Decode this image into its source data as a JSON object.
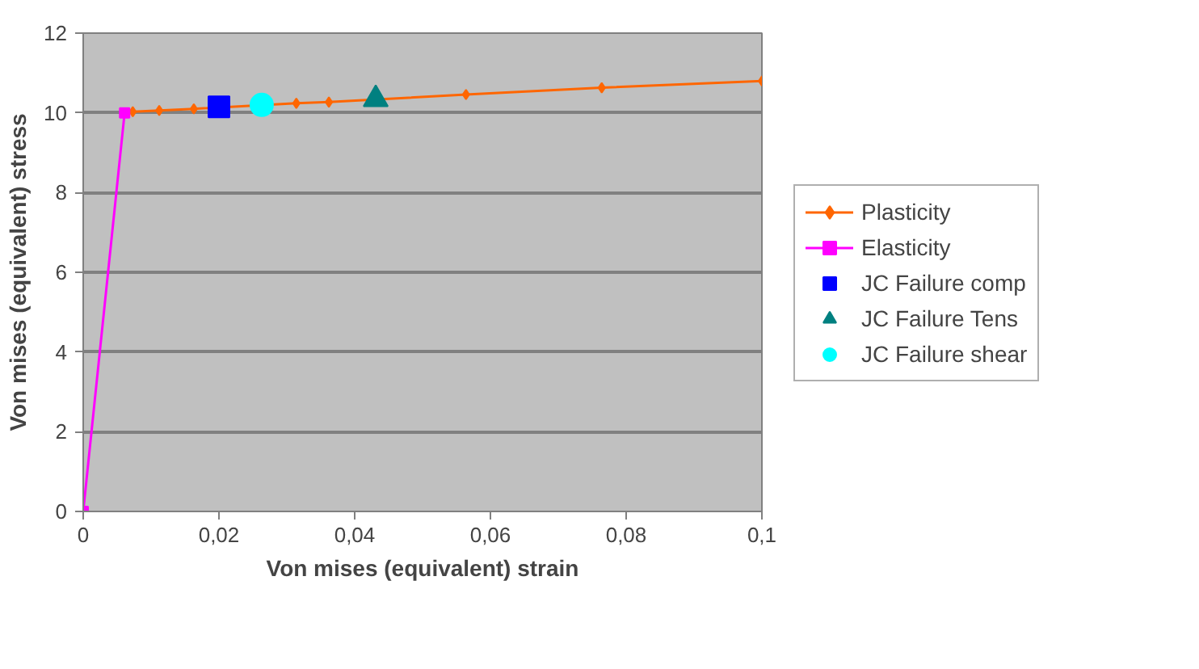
{
  "chart_data": {
    "type": "line",
    "xlabel": "Von mises (equivalent) strain",
    "ylabel": "Von mises (equivalent) stress",
    "xlim": [
      0,
      0.1
    ],
    "ylim": [
      0,
      12
    ],
    "xticks": [
      0,
      {
        "value": 0.02,
        "label": "0,02"
      },
      {
        "value": 0.04,
        "label": "0,04"
      },
      {
        "value": 0.06,
        "label": "0,06"
      },
      {
        "value": 0.08,
        "label": "0,08"
      },
      {
        "value": 0.1,
        "label": "0,1"
      }
    ],
    "yticks": [
      0,
      2,
      4,
      6,
      8,
      10,
      12
    ],
    "grid": "y",
    "legend": "right",
    "series": [
      {
        "name": "Plasticity",
        "color": "#ff6600",
        "marker": "diamond",
        "x": [
          0.0073,
          0.0112,
          0.0163,
          0.0314,
          0.0362,
          0.0564,
          0.0764,
          0.1
        ],
        "values": [
          10.03,
          10.06,
          10.1,
          10.24,
          10.27,
          10.46,
          10.63,
          10.8
        ]
      },
      {
        "name": "Elasticity",
        "color": "#ff00ff",
        "marker": "square",
        "x": [
          0,
          0.0061
        ],
        "values": [
          0,
          10.0
        ]
      },
      {
        "name": "JC Failure comp",
        "color": "#0000ff",
        "type": "scatter",
        "marker": "square",
        "x": [
          0.02
        ],
        "values": [
          10.15
        ]
      },
      {
        "name": "JC Failure Tens",
        "color": "#008080",
        "type": "scatter",
        "marker": "triangle",
        "x": [
          0.0431
        ],
        "values": [
          10.34
        ]
      },
      {
        "name": "JC Failure shear",
        "color": "#00ffff",
        "type": "scatter",
        "marker": "circle",
        "x": [
          0.0263
        ],
        "values": [
          10.2
        ]
      }
    ]
  }
}
